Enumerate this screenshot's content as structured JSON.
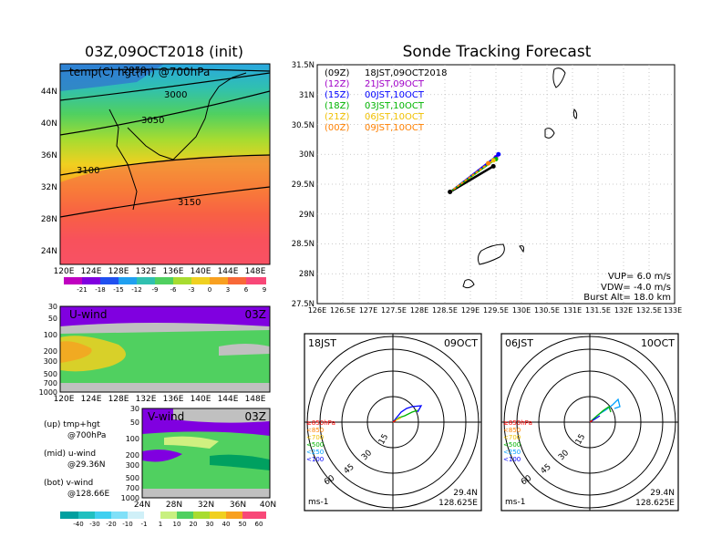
{
  "panels": {
    "map_title": "03Z,09OCT2018 (init)",
    "map_subtitle": "temp(C) hgt(m) @700hPa",
    "map_lat_ticks": [
      "44N",
      "40N",
      "36N",
      "32N",
      "28N",
      "24N"
    ],
    "map_lon_ticks": [
      "120E",
      "124E",
      "128E",
      "132E",
      "136E",
      "140E",
      "144E",
      "148E"
    ],
    "contour_labels": [
      "2950",
      "3000",
      "3050",
      "3100",
      "3150"
    ],
    "temp_scale": [
      "-21",
      "-18",
      "-15",
      "-12",
      "-9",
      "-6",
      "-3",
      "0",
      "3",
      "6",
      "9"
    ],
    "u_title": "U-wind",
    "u_time": "03Z",
    "u_y_ticks": [
      "30",
      "50",
      "100",
      "200",
      "300",
      "500",
      "700",
      "1000"
    ],
    "u_x_ticks": [
      "120E",
      "124E",
      "128E",
      "132E",
      "136E",
      "140E",
      "144E",
      "148E"
    ],
    "v_title": "V-wind",
    "v_time": "03Z",
    "v_y_ticks": [
      "30",
      "50",
      "100",
      "200",
      "300",
      "500",
      "700",
      "1000"
    ],
    "v_x_ticks": [
      "24N",
      "28N",
      "32N",
      "36N",
      "40N"
    ],
    "wind_scale": [
      "-40",
      "-30",
      "-20",
      "-10",
      "-1",
      "1",
      "10",
      "20",
      "30",
      "40",
      "50",
      "60"
    ],
    "notes": [
      "(up) tmp+hgt",
      "@700hPa",
      "(mid) u-wind",
      "@29.36N",
      "(bot) v-wind",
      "@128.66E"
    ]
  },
  "tracking": {
    "title": "Sonde Tracking Forecast",
    "legend": [
      {
        "code": "(09Z)",
        "label": "18JST,09OCT2018",
        "color": "#000000"
      },
      {
        "code": "(12Z)",
        "label": "21JST,09OCT",
        "color": "#a000c8"
      },
      {
        "code": "(15Z)",
        "label": "00JST,10OCT",
        "color": "#0000ff"
      },
      {
        "code": "(18Z)",
        "label": "03JST,10OCT",
        "color": "#00b400"
      },
      {
        "code": "(21Z)",
        "label": "06JST,10OCT",
        "color": "#f0c000"
      },
      {
        "code": "(00Z)",
        "label": "09JST,10OCT",
        "color": "#ff8000"
      }
    ],
    "lat_ticks": [
      "31.5N",
      "31N",
      "30.5N",
      "30N",
      "29.5N",
      "29N",
      "28.5N",
      "28N",
      "27.5N"
    ],
    "lon_ticks": [
      "126E",
      "126.5E",
      "127E",
      "127.5E",
      "128E",
      "128.5E",
      "129E",
      "129.5E",
      "130E",
      "130.5E",
      "131E",
      "131.5E",
      "132E",
      "132.5E",
      "133E"
    ],
    "info": [
      "VUP= 6.0 m/s",
      "VDW= -4.0 m/s",
      "Burst Alt= 18.0 km"
    ]
  },
  "hodo_left": {
    "time": "18JST",
    "date": "09OCT",
    "lat": "29.4N",
    "lon": "128.625E",
    "unit": "ms-1",
    "rings": [
      "15",
      "30",
      "45",
      "60"
    ],
    "levels": [
      {
        "label": "≥850hPa",
        "color": "#ff0000"
      },
      {
        "label": "<850",
        "color": "#ff8000"
      },
      {
        "label": "<700",
        "color": "#f0c000"
      },
      {
        "label": "<500",
        "color": "#00b400"
      },
      {
        "label": "<250",
        "color": "#00a0ff"
      },
      {
        "label": "<100",
        "color": "#0000ff"
      }
    ]
  },
  "hodo_right": {
    "time": "06JST",
    "date": "10OCT",
    "lat": "29.4N",
    "lon": "128.625E",
    "unit": "ms-1",
    "rings": [
      "15",
      "30",
      "45",
      "60"
    ],
    "levels": [
      {
        "label": "≥850hPa",
        "color": "#ff0000"
      },
      {
        "label": "<850",
        "color": "#ff8000"
      },
      {
        "label": "<700",
        "color": "#f0c000"
      },
      {
        "label": "<500",
        "color": "#00b400"
      },
      {
        "label": "<250",
        "color": "#00a0ff"
      },
      {
        "label": "<100",
        "color": "#0000ff"
      }
    ]
  },
  "chart_data": [
    {
      "type": "heatmap",
      "title": "03Z,09OCT2018 (init)",
      "subtitle": "temp(C) hgt(m) @700hPa",
      "xlim": [
        120,
        150
      ],
      "ylim": [
        22,
        48
      ],
      "contours": [
        2950,
        3000,
        3050,
        3100,
        3150
      ],
      "scale": [
        -21,
        -18,
        -15,
        -12,
        -9,
        -6,
        -3,
        0,
        3,
        6,
        9
      ]
    },
    {
      "type": "heatmap",
      "title": "U-wind",
      "xlim": [
        120,
        150
      ],
      "ylim": [
        1000,
        30
      ]
    },
    {
      "type": "heatmap",
      "title": "V-wind",
      "xlim": [
        24,
        40
      ],
      "ylim": [
        1000,
        30
      ]
    },
    {
      "type": "line",
      "title": "Sonde Tracking Forecast",
      "xlim": [
        126,
        133
      ],
      "ylim": [
        27.5,
        31.5
      ],
      "series": [
        {
          "name": "(09Z) 18JST,09OCT2018",
          "x": [
            128.6,
            129.45
          ],
          "y": [
            29.37,
            29.8
          ],
          "color": "#000000"
        },
        {
          "name": "(12Z) 21JST,09OCT",
          "x": [
            128.6,
            129.5
          ],
          "y": [
            29.37,
            29.95
          ],
          "color": "#a000c8"
        },
        {
          "name": "(15Z) 00JST,10OCT",
          "x": [
            128.6,
            129.55
          ],
          "y": [
            29.37,
            30.0
          ],
          "color": "#0000ff"
        },
        {
          "name": "(18Z) 03JST,10OCT",
          "x": [
            128.6,
            129.5
          ],
          "y": [
            29.37,
            29.92
          ],
          "color": "#00b400"
        },
        {
          "name": "(21Z) 06JST,10OCT",
          "x": [
            128.6,
            129.45
          ],
          "y": [
            29.37,
            29.9
          ],
          "color": "#f0c000"
        },
        {
          "name": "(00Z) 09JST,10OCT",
          "x": [
            128.6,
            129.35
          ],
          "y": [
            29.37,
            29.85
          ],
          "color": "#ff8000"
        }
      ]
    },
    {
      "type": "scatter",
      "title": "18JST 09OCT",
      "rings": [
        15,
        30,
        45,
        60
      ]
    },
    {
      "type": "scatter",
      "title": "06JST 10OCT",
      "rings": [
        15,
        30,
        45,
        60
      ]
    }
  ]
}
